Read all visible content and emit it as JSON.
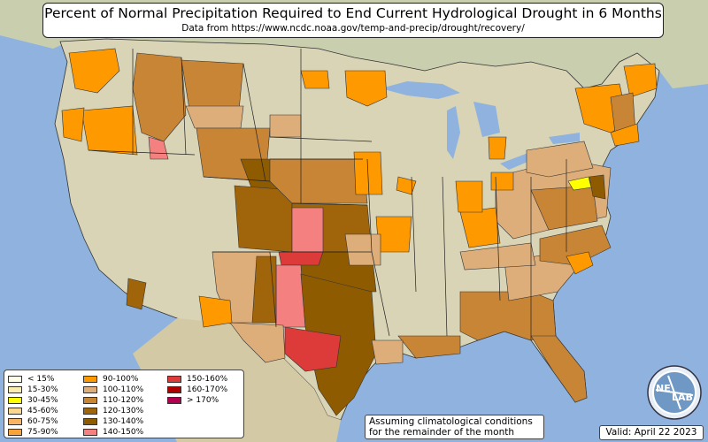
{
  "title": "Percent of Normal Precipitation Required to End Current Hydrological Drought in 6 Months",
  "subtitle": "Data from https://www.ncdc.noaa.gov/temp-and-precip/drought/recovery/",
  "legend": [
    {
      "label": "< 15%",
      "color": "#fdfde8"
    },
    {
      "label": "15-30%",
      "color": "#fbeeb0"
    },
    {
      "label": "30-45%",
      "color": "#ffff00"
    },
    {
      "label": "45-60%",
      "color": "#fcd78f"
    },
    {
      "label": "60-75%",
      "color": "#f9b365"
    },
    {
      "label": "75-90%",
      "color": "#f8a23a"
    },
    {
      "label": "90-100%",
      "color": "#ff9900"
    },
    {
      "label": "100-110%",
      "color": "#ddae7a"
    },
    {
      "label": "110-120%",
      "color": "#c98536"
    },
    {
      "label": "120-130%",
      "color": "#a0650a"
    },
    {
      "label": "130-140%",
      "color": "#8f5b00"
    },
    {
      "label": "140-150%",
      "color": "#f58080"
    },
    {
      "label": "150-160%",
      "color": "#dd3a3a"
    },
    {
      "label": "160-170%",
      "color": "#b00000"
    },
    {
      "label": "> 170%",
      "color": "#b0004f"
    }
  ],
  "note": {
    "line1": "Assuming climatological conditions",
    "line2": "for the remainder of the month"
  },
  "valid": "Valid: April 22 2023",
  "logo": {
    "text_top": "NE",
    "text_bottom": "LAB"
  },
  "colors": {
    "ocean": "#8fb3de",
    "land": "#d9d4b6",
    "boundary": "#222222"
  }
}
